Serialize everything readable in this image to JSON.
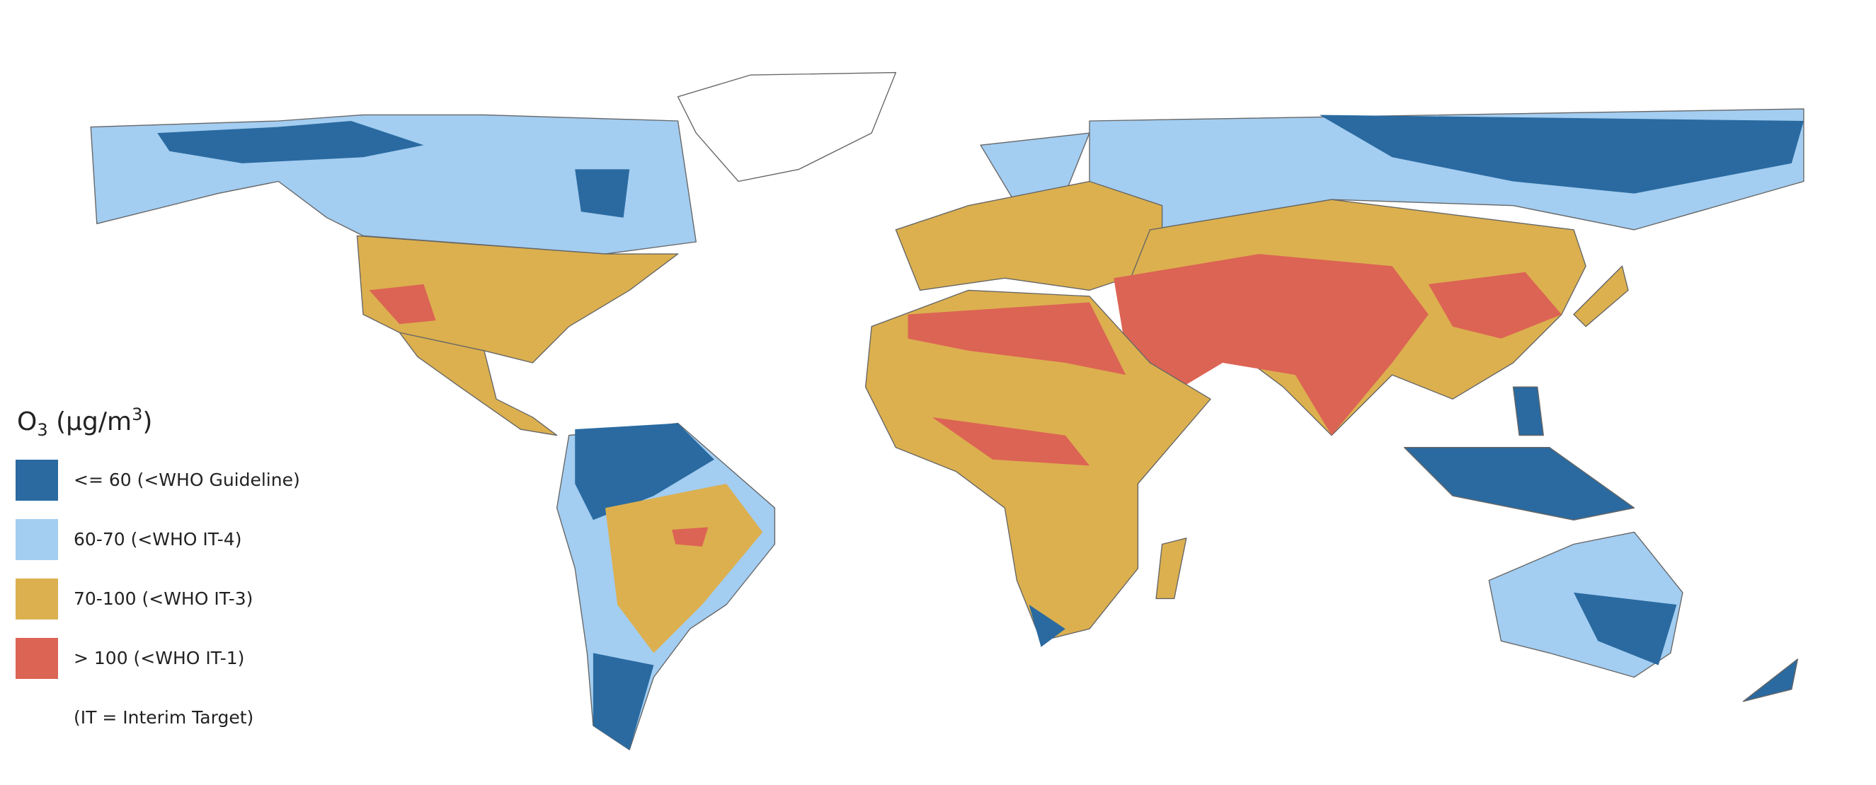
{
  "legend": {
    "title": {
      "main": "O",
      "sub": "3",
      "unit": " (μg/m",
      "sup": "3",
      "close": ")"
    },
    "items": [
      {
        "label": "<= 60 (<WHO Guideline)",
        "color": "#2a6aa0"
      },
      {
        "label": "60-70 (<WHO IT-4)",
        "color": "#a3cdf1"
      },
      {
        "label": "70-100 (<WHO IT-3)",
        "color": "#dcb04f"
      },
      {
        "label": "> 100 (<WHO IT-1)",
        "color": "#dc6454"
      }
    ],
    "note": "(IT = Interim Target)"
  }
}
